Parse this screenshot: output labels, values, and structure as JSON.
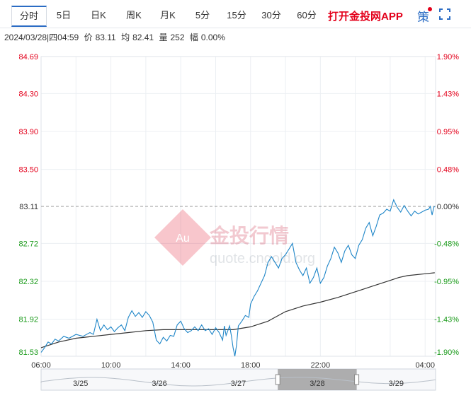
{
  "tabs": [
    {
      "label": "分时",
      "active": true
    },
    {
      "label": "5日"
    },
    {
      "label": "日K"
    },
    {
      "label": "周K"
    },
    {
      "label": "月K"
    },
    {
      "label": "5分"
    },
    {
      "label": "15分"
    },
    {
      "label": "30分"
    },
    {
      "label": "60分"
    }
  ],
  "app_link": "打开金投网APP",
  "strategy_label": "策",
  "info": {
    "datetime": "2024/03/28|四04:59",
    "price_label": "价",
    "price": "83.11",
    "avg_label": "均",
    "avg": "82.41",
    "vol_label": "量",
    "vol": "252",
    "range_label": "幅",
    "range": "0.00%"
  },
  "watermark": {
    "name": "金投行情",
    "url": "quote.cngold.org",
    "logo": "Au"
  },
  "colors": {
    "price_line": "#1f86c8",
    "avg_line": "#333333",
    "up": "#e3001b",
    "down": "#1a9a1a",
    "neutral": "#333333",
    "grid": "#eceff3",
    "nav_fill": "#a0a0a0"
  },
  "chart_data": {
    "type": "line",
    "y_ticks": [
      "84.69",
      "84.30",
      "83.90",
      "83.50",
      "83.11",
      "82.72",
      "82.32",
      "81.92",
      "81.53"
    ],
    "pct_ticks": [
      "1.90%",
      "1.43%",
      "0.95%",
      "0.48%",
      "0.00%",
      "-0.48%",
      "-0.95%",
      "-1.43%",
      "-1.90%"
    ],
    "ylim": [
      81.53,
      84.69
    ],
    "reference": 83.11,
    "x_ticks": [
      "06:00",
      "10:00",
      "14:00",
      "18:00",
      "22:00",
      "04:00"
    ],
    "x_tick_hours": [
      6,
      10,
      14,
      18,
      22,
      28
    ],
    "xlim_hours": [
      6,
      28.6
    ],
    "series": [
      {
        "role": "price",
        "points": [
          [
            6.0,
            81.57
          ],
          [
            6.2,
            81.62
          ],
          [
            6.4,
            81.68
          ],
          [
            6.6,
            81.66
          ],
          [
            6.8,
            81.71
          ],
          [
            7.0,
            81.69
          ],
          [
            7.3,
            81.74
          ],
          [
            7.6,
            81.72
          ],
          [
            8.0,
            81.76
          ],
          [
            8.4,
            81.74
          ],
          [
            8.8,
            81.78
          ],
          [
            9.0,
            81.76
          ],
          [
            9.2,
            81.92
          ],
          [
            9.4,
            81.8
          ],
          [
            9.6,
            81.86
          ],
          [
            9.8,
            81.81
          ],
          [
            10.0,
            81.84
          ],
          [
            10.2,
            81.79
          ],
          [
            10.4,
            81.83
          ],
          [
            10.6,
            81.86
          ],
          [
            10.8,
            81.8
          ],
          [
            11.0,
            81.94
          ],
          [
            11.2,
            82.01
          ],
          [
            11.4,
            81.95
          ],
          [
            11.6,
            81.99
          ],
          [
            11.8,
            81.94
          ],
          [
            12.0,
            82.0
          ],
          [
            12.2,
            81.96
          ],
          [
            12.4,
            81.89
          ],
          [
            12.6,
            81.7
          ],
          [
            12.8,
            81.66
          ],
          [
            13.0,
            81.73
          ],
          [
            13.2,
            81.69
          ],
          [
            13.4,
            81.75
          ],
          [
            13.6,
            81.74
          ],
          [
            13.8,
            81.86
          ],
          [
            14.0,
            81.9
          ],
          [
            14.2,
            81.82
          ],
          [
            14.4,
            81.78
          ],
          [
            14.6,
            81.8
          ],
          [
            14.8,
            81.84
          ],
          [
            15.0,
            81.8
          ],
          [
            15.2,
            81.86
          ],
          [
            15.4,
            81.8
          ],
          [
            15.6,
            81.82
          ],
          [
            15.8,
            81.76
          ],
          [
            16.0,
            81.83
          ],
          [
            16.2,
            81.78
          ],
          [
            16.4,
            81.7
          ],
          [
            16.5,
            81.85
          ],
          [
            16.6,
            81.75
          ],
          [
            16.8,
            81.85
          ],
          [
            16.9,
            81.75
          ],
          [
            17.0,
            81.62
          ],
          [
            17.1,
            81.53
          ],
          [
            17.2,
            81.65
          ],
          [
            17.3,
            81.85
          ],
          [
            17.5,
            81.9
          ],
          [
            17.7,
            81.96
          ],
          [
            17.9,
            81.94
          ],
          [
            18.0,
            82.08
          ],
          [
            18.2,
            82.16
          ],
          [
            18.4,
            82.22
          ],
          [
            18.6,
            82.3
          ],
          [
            18.8,
            82.38
          ],
          [
            19.0,
            82.52
          ],
          [
            19.2,
            82.58
          ],
          [
            19.4,
            82.52
          ],
          [
            19.6,
            82.46
          ],
          [
            19.8,
            82.56
          ],
          [
            20.0,
            82.6
          ],
          [
            20.2,
            82.66
          ],
          [
            20.4,
            82.72
          ],
          [
            20.6,
            82.52
          ],
          [
            20.8,
            82.44
          ],
          [
            21.0,
            82.38
          ],
          [
            21.2,
            82.46
          ],
          [
            21.4,
            82.3
          ],
          [
            21.6,
            82.36
          ],
          [
            21.8,
            82.46
          ],
          [
            22.0,
            82.3
          ],
          [
            22.2,
            82.36
          ],
          [
            22.4,
            82.48
          ],
          [
            22.6,
            82.56
          ],
          [
            22.8,
            82.68
          ],
          [
            23.0,
            82.62
          ],
          [
            23.2,
            82.52
          ],
          [
            23.4,
            82.64
          ],
          [
            23.6,
            82.7
          ],
          [
            23.8,
            82.6
          ],
          [
            24.0,
            82.56
          ],
          [
            24.2,
            82.7
          ],
          [
            24.4,
            82.76
          ],
          [
            24.6,
            82.88
          ],
          [
            24.8,
            82.94
          ],
          [
            25.0,
            82.8
          ],
          [
            25.2,
            82.9
          ],
          [
            25.4,
            83.02
          ],
          [
            25.6,
            83.04
          ],
          [
            25.8,
            83.08
          ],
          [
            26.0,
            83.06
          ],
          [
            26.2,
            83.18
          ],
          [
            26.4,
            83.1
          ],
          [
            26.6,
            83.05
          ],
          [
            26.8,
            83.12
          ],
          [
            27.0,
            83.06
          ],
          [
            27.2,
            83.01
          ],
          [
            27.4,
            83.06
          ],
          [
            27.6,
            83.03
          ],
          [
            27.8,
            83.05
          ],
          [
            28.0,
            83.07
          ],
          [
            28.2,
            83.08
          ],
          [
            28.3,
            83.11
          ],
          [
            28.4,
            83.02
          ],
          [
            28.5,
            83.1
          ],
          [
            28.55,
            83.11
          ]
        ]
      },
      {
        "role": "average",
        "points": [
          [
            6.0,
            81.62
          ],
          [
            7.0,
            81.68
          ],
          [
            8.0,
            81.72
          ],
          [
            9.0,
            81.74
          ],
          [
            10.0,
            81.76
          ],
          [
            11.0,
            81.78
          ],
          [
            12.0,
            81.8
          ],
          [
            13.0,
            81.81
          ],
          [
            14.0,
            81.81
          ],
          [
            15.0,
            81.81
          ],
          [
            16.0,
            81.81
          ],
          [
            17.0,
            81.81
          ],
          [
            18.0,
            81.84
          ],
          [
            19.0,
            81.9
          ],
          [
            20.0,
            82.0
          ],
          [
            21.0,
            82.06
          ],
          [
            22.0,
            82.1
          ],
          [
            23.0,
            82.15
          ],
          [
            24.0,
            82.21
          ],
          [
            25.0,
            82.27
          ],
          [
            26.0,
            82.33
          ],
          [
            26.5,
            82.36
          ],
          [
            27.0,
            82.38
          ],
          [
            28.0,
            82.4
          ],
          [
            28.55,
            82.41
          ]
        ]
      }
    ]
  },
  "navigator": {
    "dates": [
      "3/25",
      "3/26",
      "3/27",
      "3/28",
      "3/29"
    ],
    "selected_index": 3
  }
}
